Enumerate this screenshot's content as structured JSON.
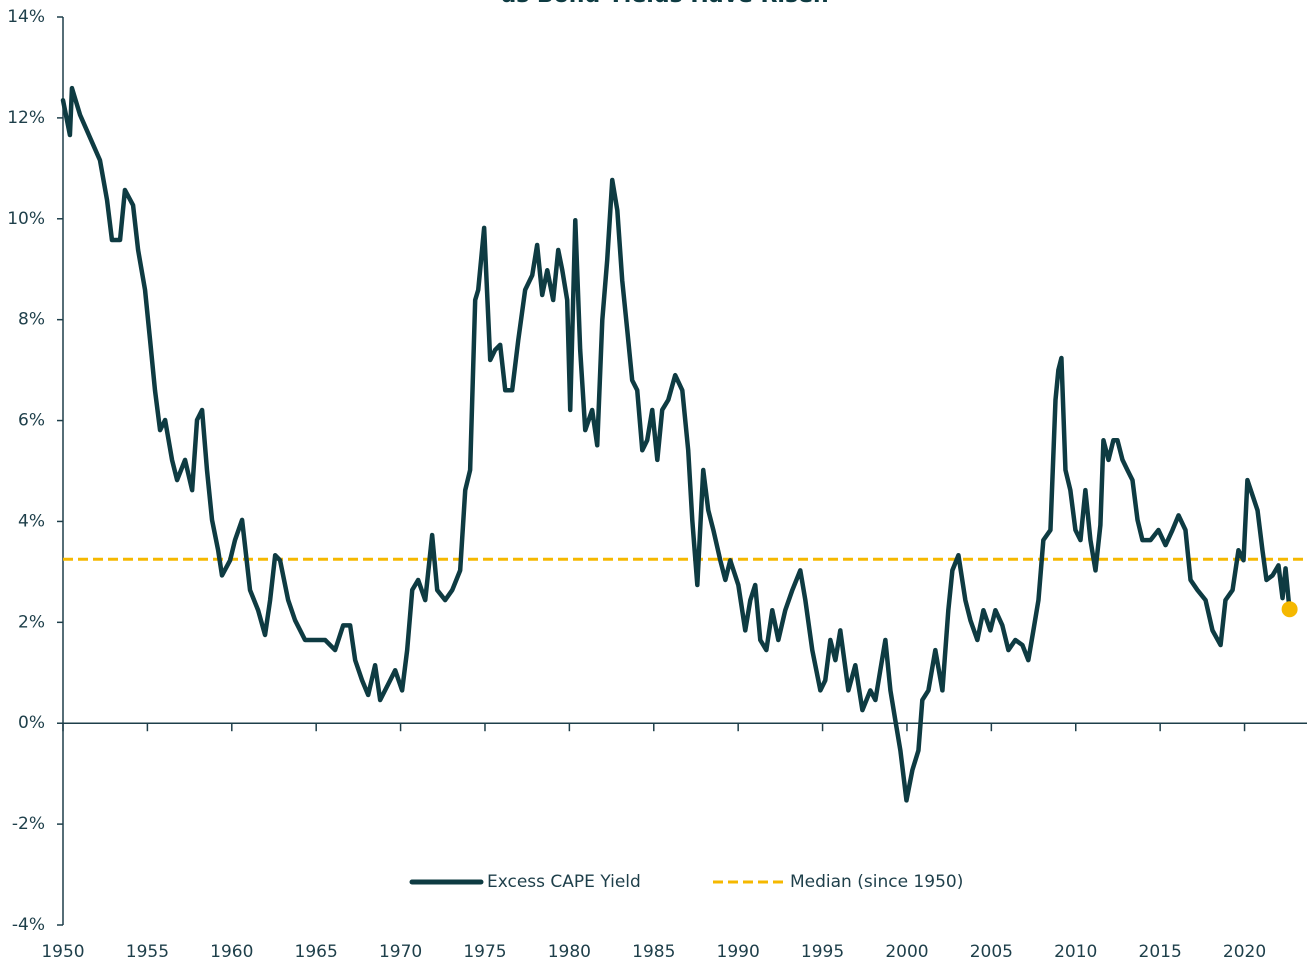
{
  "chart_data": {
    "type": "line",
    "title": "as Bond Yields Have Risen",
    "x": [
      1950.0,
      1950.41,
      1950.53,
      1951.01,
      1952.19,
      1952.61,
      1952.9,
      1953.38,
      1953.67,
      1954.15,
      1954.45,
      1954.86,
      1955.16,
      1955.45,
      1955.75,
      1956.05,
      1956.46,
      1956.76,
      1957.23,
      1957.65,
      1957.94,
      1958.24,
      1958.53,
      1958.83,
      1959.19,
      1959.42,
      1959.9,
      1960.19,
      1960.61,
      1961.08,
      1961.56,
      1961.97,
      1962.27,
      1962.57,
      1962.86,
      1963.34,
      1963.75,
      1964.34,
      1964.94,
      1965.53,
      1966.12,
      1966.6,
      1967.01,
      1967.31,
      1967.72,
      1968.08,
      1968.49,
      1968.79,
      1969.38,
      1969.68,
      1970.09,
      1970.39,
      1970.69,
      1971.04,
      1971.46,
      1971.87,
      1972.17,
      1972.64,
      1973.06,
      1973.53,
      1973.83,
      1974.12,
      1974.42,
      1974.6,
      1974.95,
      1975.31,
      1975.6,
      1975.9,
      1976.2,
      1976.61,
      1976.97,
      1977.38,
      1977.8,
      1978.09,
      1978.39,
      1978.69,
      1979.04,
      1979.34,
      1979.58,
      1979.87,
      1980.05,
      1980.35,
      1980.64,
      1980.94,
      1981.35,
      1981.65,
      1981.95,
      1982.24,
      1982.54,
      1982.84,
      1983.13,
      1983.43,
      1983.72,
      1984.02,
      1984.32,
      1984.61,
      1984.91,
      1985.21,
      1985.5,
      1985.86,
      1986.27,
      1986.69,
      1987.04,
      1987.28,
      1987.58,
      1987.93,
      1988.23,
      1988.53,
      1988.94,
      1989.24,
      1989.53,
      1990.01,
      1990.42,
      1990.72,
      1991.01,
      1991.31,
      1991.67,
      1992.02,
      1992.38,
      1992.79,
      1993.21,
      1993.68,
      1993.98,
      1994.39,
      1994.87,
      1995.16,
      1995.46,
      1995.76,
      1996.05,
      1996.53,
      1996.94,
      1997.36,
      1997.83,
      1998.13,
      1998.42,
      1998.72,
      1999.02,
      1999.31,
      1999.61,
      1999.97,
      2000.32,
      2000.68,
      2000.91,
      2001.27,
      2001.68,
      2002.1,
      2002.45,
      2002.69,
      2003.05,
      2003.46,
      2003.76,
      2004.17,
      2004.53,
      2004.94,
      2005.24,
      2005.65,
      2006.01,
      2006.42,
      2006.84,
      2007.19,
      2007.49,
      2007.79,
      2008.08,
      2008.5,
      2008.8,
      2008.97,
      2009.15,
      2009.39,
      2009.68,
      2009.98,
      2010.28,
      2010.57,
      2010.87,
      2011.17,
      2011.46,
      2011.64,
      2011.94,
      2012.23,
      2012.47,
      2012.77,
      2013.06,
      2013.36,
      2013.66,
      2013.95,
      2014.43,
      2014.9,
      2015.32,
      2015.73,
      2016.09,
      2016.5,
      2016.8,
      2017.21,
      2017.69,
      2018.1,
      2018.58,
      2018.87,
      2019.29,
      2019.64,
      2019.94,
      2020.17,
      2020.47,
      2020.77,
      2021.06,
      2021.3,
      2021.66,
      2022.01,
      2022.25,
      2022.43,
      2022.61,
      2022.67
    ],
    "series": [
      {
        "name": "Excess CAPE Yield",
        "color": "#0e3b42",
        "values": [
          12.35,
          11.66,
          12.59,
          12.06,
          11.16,
          10.37,
          9.58,
          9.58,
          10.57,
          10.27,
          9.38,
          8.59,
          7.59,
          6.6,
          5.81,
          6.01,
          5.22,
          4.82,
          5.22,
          4.62,
          6.01,
          6.21,
          5.02,
          4.03,
          3.43,
          2.93,
          3.23,
          3.63,
          4.03,
          2.64,
          2.24,
          1.75,
          2.44,
          3.33,
          3.23,
          2.44,
          2.04,
          1.65,
          1.65,
          1.65,
          1.45,
          1.94,
          1.94,
          1.25,
          0.85,
          0.56,
          1.15,
          0.46,
          0.85,
          1.05,
          0.65,
          1.45,
          2.64,
          2.84,
          2.44,
          3.73,
          2.64,
          2.44,
          2.64,
          3.03,
          4.62,
          5.02,
          8.39,
          8.59,
          9.82,
          7.2,
          7.4,
          7.5,
          6.6,
          6.6,
          7.59,
          8.59,
          8.88,
          9.48,
          8.49,
          8.98,
          8.39,
          9.38,
          8.98,
          8.39,
          6.21,
          9.97,
          7.4,
          5.81,
          6.21,
          5.51,
          7.99,
          9.18,
          10.77,
          10.17,
          8.78,
          7.79,
          6.8,
          6.6,
          5.41,
          5.61,
          6.21,
          5.22,
          6.21,
          6.41,
          6.9,
          6.6,
          5.41,
          4.03,
          2.74,
          5.02,
          4.22,
          3.83,
          3.23,
          2.84,
          3.23,
          2.74,
          1.84,
          2.44,
          2.74,
          1.65,
          1.45,
          2.24,
          1.65,
          2.24,
          2.64,
          3.03,
          2.44,
          1.45,
          0.65,
          0.85,
          1.65,
          1.25,
          1.84,
          0.65,
          1.15,
          0.26,
          0.65,
          0.46,
          1.05,
          1.65,
          0.65,
          0.06,
          -0.54,
          -1.53,
          -0.93,
          -0.54,
          0.46,
          0.65,
          1.45,
          0.65,
          2.24,
          3.03,
          3.33,
          2.44,
          2.04,
          1.65,
          2.24,
          1.84,
          2.24,
          1.94,
          1.45,
          1.65,
          1.55,
          1.25,
          1.84,
          2.44,
          3.63,
          3.83,
          6.41,
          7.0,
          7.24,
          5.02,
          4.62,
          3.83,
          3.63,
          4.62,
          3.63,
          3.03,
          3.93,
          5.61,
          5.22,
          5.61,
          5.61,
          5.22,
          5.02,
          4.82,
          4.03,
          3.63,
          3.63,
          3.83,
          3.53,
          3.83,
          4.12,
          3.83,
          2.84,
          2.64,
          2.44,
          1.84,
          1.55,
          2.44,
          2.64,
          3.43,
          3.23,
          4.82,
          4.52,
          4.22,
          3.43,
          2.84,
          2.93,
          3.13,
          2.48,
          3.07,
          2.44,
          2.26
        ]
      }
    ],
    "median": {
      "name": "Median (since 1950)",
      "value": 3.25,
      "color": "#f5b800"
    },
    "end_marker": {
      "color": "#f5b800"
    },
    "xlim": [
      1950,
      2023.7
    ],
    "xticks": [
      1950,
      1955,
      1960,
      1965,
      1970,
      1975,
      1980,
      1985,
      1990,
      1995,
      2000,
      2005,
      2010,
      2015,
      2020
    ],
    "ylim": [
      -4,
      14
    ],
    "yticks": [
      {
        "value": -4,
        "label": "-4%"
      },
      {
        "value": -2,
        "label": "-2%"
      },
      {
        "value": 0,
        "label": "0%"
      },
      {
        "value": 2,
        "label": "2%"
      },
      {
        "value": 4,
        "label": "4%"
      },
      {
        "value": 6,
        "label": "6%"
      },
      {
        "value": 8,
        "label": "8%"
      },
      {
        "value": 10,
        "label": "10%"
      },
      {
        "value": 12,
        "label": "12%"
      },
      {
        "value": 14,
        "label": "14%"
      }
    ],
    "legend": "bottom"
  }
}
